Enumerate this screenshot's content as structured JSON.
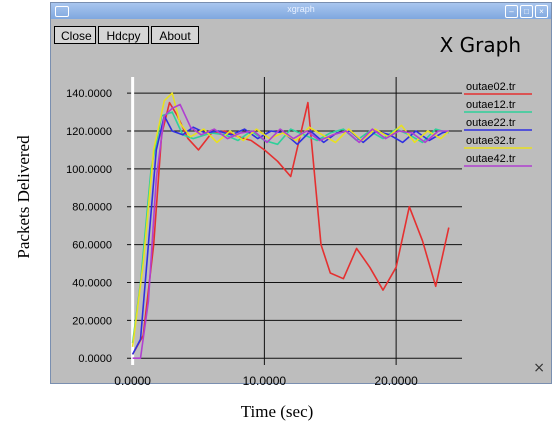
{
  "window": {
    "title": "xgraph",
    "buttons": {
      "close": "Close",
      "hdcpy": "Hdcpy",
      "about": "About"
    },
    "graph_title": "X Graph",
    "corner_mark": "×"
  },
  "axis_labels": {
    "y": "Packets Delivered",
    "x": "Time (sec)"
  },
  "colors": {
    "window_bg": "#bdbdbd",
    "grid": "#111111",
    "titlebar": "#8fb3e6"
  },
  "chart_data": {
    "type": "line",
    "xlim": [
      -0.2,
      25
    ],
    "ylim": [
      -2,
      148
    ],
    "yticks": [
      0,
      20,
      40,
      60,
      80,
      100,
      120,
      140
    ],
    "ytick_labels": [
      "0.0000",
      "20.0000",
      "40.0000",
      "60.0000",
      "80.0000",
      "100.0000",
      "120.0000",
      "140.0000"
    ],
    "xticks": [
      0,
      10,
      20
    ],
    "xtick_labels": [
      "0.0000",
      "10.0000",
      "20.0000"
    ],
    "grid": true,
    "legend_position": "right",
    "series": [
      {
        "name": "outae02.tr",
        "color": "#e53030",
        "x": [
          0,
          0.8,
          1.6,
          2.2,
          2.8,
          3.4,
          4.2,
          5.0,
          6.0,
          7.0,
          8.0,
          9.0,
          10.0,
          11.0,
          12.0,
          13.3,
          14.3,
          15.0,
          16.0,
          17.0,
          18.0,
          19.0,
          20.0,
          21.0,
          22.0,
          23.0,
          24.0
        ],
        "y": [
          2,
          12,
          60,
          118,
          135,
          128,
          116,
          110,
          119,
          120,
          117,
          115,
          110,
          104,
          96,
          135,
          60,
          45,
          42,
          58,
          48,
          36,
          48,
          80,
          62,
          38,
          69
        ]
      },
      {
        "name": "outae12.tr",
        "color": "#2fd09a",
        "x": [
          0,
          0.6,
          1.4,
          2.2,
          3.0,
          3.8,
          4.6,
          6.0,
          7.0,
          8.0,
          9.0,
          10.0,
          11.0,
          12.0,
          13.0,
          14.0,
          15.0,
          16.0,
          17.0,
          18.0,
          19.0,
          20.0,
          21.0,
          22.0,
          23.0,
          24.0
        ],
        "y": [
          8,
          40,
          100,
          128,
          130,
          118,
          116,
          119,
          118,
          115,
          120,
          115,
          113,
          121,
          118,
          115,
          119,
          121,
          115,
          120,
          116,
          121,
          118,
          114,
          121,
          119
        ]
      },
      {
        "name": "outae22.tr",
        "color": "#3030e0",
        "x": [
          0,
          0.6,
          1.2,
          1.8,
          2.4,
          3.0,
          3.8,
          4.6,
          5.5,
          6.5,
          7.5,
          8.5,
          9.5,
          10.5,
          11.5,
          12.5,
          13.5,
          14.5,
          15.5,
          16.5,
          17.5,
          18.5,
          19.5,
          20.5,
          21.5,
          22.5,
          23.5,
          24.0
        ],
        "y": [
          2,
          10,
          60,
          110,
          128,
          120,
          118,
          122,
          119,
          120,
          118,
          121,
          116,
          120,
          119,
          113,
          120,
          114,
          119,
          120,
          114,
          120,
          118,
          114,
          120,
          115,
          119,
          120
        ]
      },
      {
        "name": "outae32.tr",
        "color": "#e8e020",
        "x": [
          0,
          0.8,
          1.6,
          2.4,
          3.0,
          3.6,
          4.4,
          5.4,
          6.4,
          7.4,
          8.4,
          9.4,
          10.4,
          11.4,
          12.4,
          13.4,
          14.4,
          15.4,
          16.4,
          17.4,
          18.4,
          19.4,
          20.4,
          21.4,
          22.4,
          23.4,
          24.0
        ],
        "y": [
          6,
          50,
          110,
          136,
          140,
          124,
          117,
          121,
          114,
          120,
          115,
          121,
          116,
          119,
          115,
          122,
          118,
          114,
          121,
          115,
          121,
          117,
          123,
          114,
          120,
          116,
          120
        ]
      },
      {
        "name": "outae42.tr",
        "color": "#b040d0",
        "x": [
          0,
          0.6,
          1.2,
          1.8,
          2.4,
          3.0,
          3.6,
          4.4,
          5.2,
          6.2,
          7.2,
          8.2,
          9.2,
          10.2,
          11.2,
          12.2,
          13.2,
          14.2,
          15.2,
          16.2,
          17.2,
          18.2,
          19.2,
          20.2,
          21.2,
          22.2,
          23.2,
          24.0
        ],
        "y": [
          0,
          0,
          30,
          95,
          128,
          132,
          134,
          122,
          118,
          121,
          116,
          119,
          120,
          114,
          121,
          116,
          120,
          115,
          118,
          120,
          114,
          121,
          116,
          120,
          119,
          114,
          120,
          120
        ]
      }
    ]
  }
}
